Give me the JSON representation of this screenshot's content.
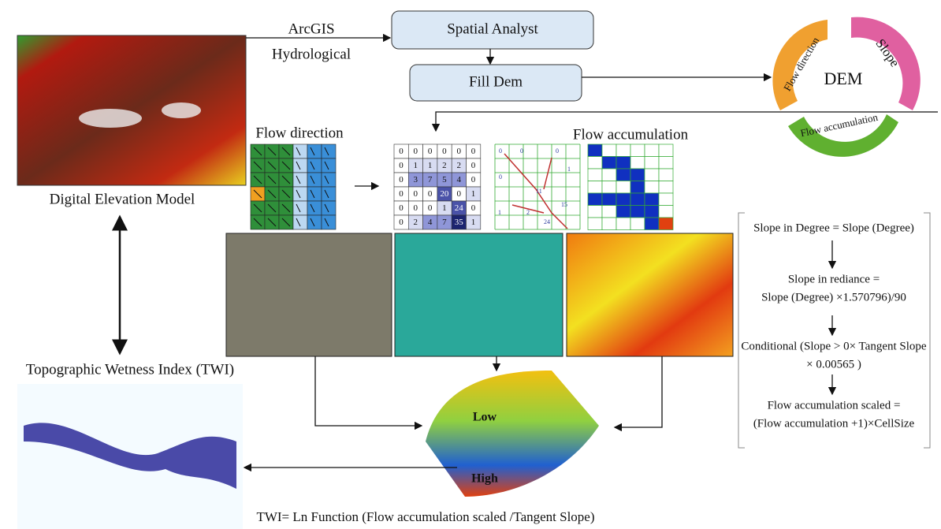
{
  "inputs": {
    "dem_label": "Digital Elevation Model",
    "tool_top": "ArcGIS",
    "tool_bottom": "Hydrological"
  },
  "process": {
    "spatial_analyst": "Spatial Analyst",
    "fill_dem": "Fill Dem"
  },
  "cycle": {
    "center": "DEM",
    "flow_direction": "Flow direction",
    "slope": "Slope",
    "flow_accumulation": "Flow accumulation"
  },
  "grids": {
    "flow_direction_label": "Flow direction",
    "flow_accumulation_label": "Flow accumulation",
    "accumulation_table": [
      [
        "0",
        "0",
        "0",
        "0",
        "0",
        "0"
      ],
      [
        "0",
        "1",
        "1",
        "2",
        "2",
        "0"
      ],
      [
        "0",
        "3",
        "7",
        "5",
        "4",
        "0"
      ],
      [
        "0",
        "0",
        "0",
        "20",
        "0",
        "1"
      ],
      [
        "0",
        "0",
        "0",
        "1",
        "24",
        "0"
      ],
      [
        "0",
        "2",
        "4",
        "7",
        "35",
        "1"
      ]
    ],
    "stream_labels": [
      "0",
      "0",
      "0",
      "0",
      "1",
      "11",
      "15",
      "2",
      "24",
      "1"
    ]
  },
  "surface": {
    "low": "Low",
    "high": "High"
  },
  "formulas": [
    "Slope in Degree = Slope (Degree)",
    "Slope in rediance =",
    "Slope (Degree)  ×1.570796)/90",
    "Conditional (Slope > 0× Tangent Slope",
    "× 0.00565 )",
    "Flow accumulation  scaled =",
    "(Flow accumulation  +1)×CellSize"
  ],
  "output": {
    "twi_label": "Topographic Wetness Index (TWI)",
    "twi_formula": "TWI= Ln Function (Flow accumulation scaled /Tangent Slope)"
  }
}
